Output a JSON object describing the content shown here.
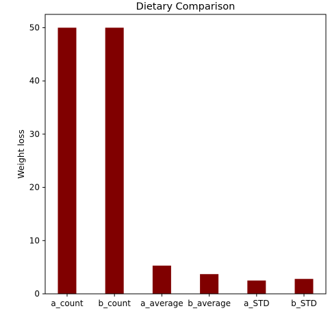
{
  "chart_data": {
    "type": "bar",
    "title": "Dietary Comparison",
    "xlabel": "",
    "ylabel": "Weight loss",
    "categories": [
      "a_count",
      "b_count",
      "a_average",
      "b_average",
      "a_STD",
      "b_STD"
    ],
    "values": [
      50,
      50,
      5.3,
      3.7,
      2.5,
      2.8
    ],
    "ylim": [
      0,
      52.5
    ],
    "yticks": [
      0,
      10,
      20,
      30,
      40,
      50
    ],
    "bar_color": "#800000",
    "grid": false,
    "legend": "none"
  }
}
